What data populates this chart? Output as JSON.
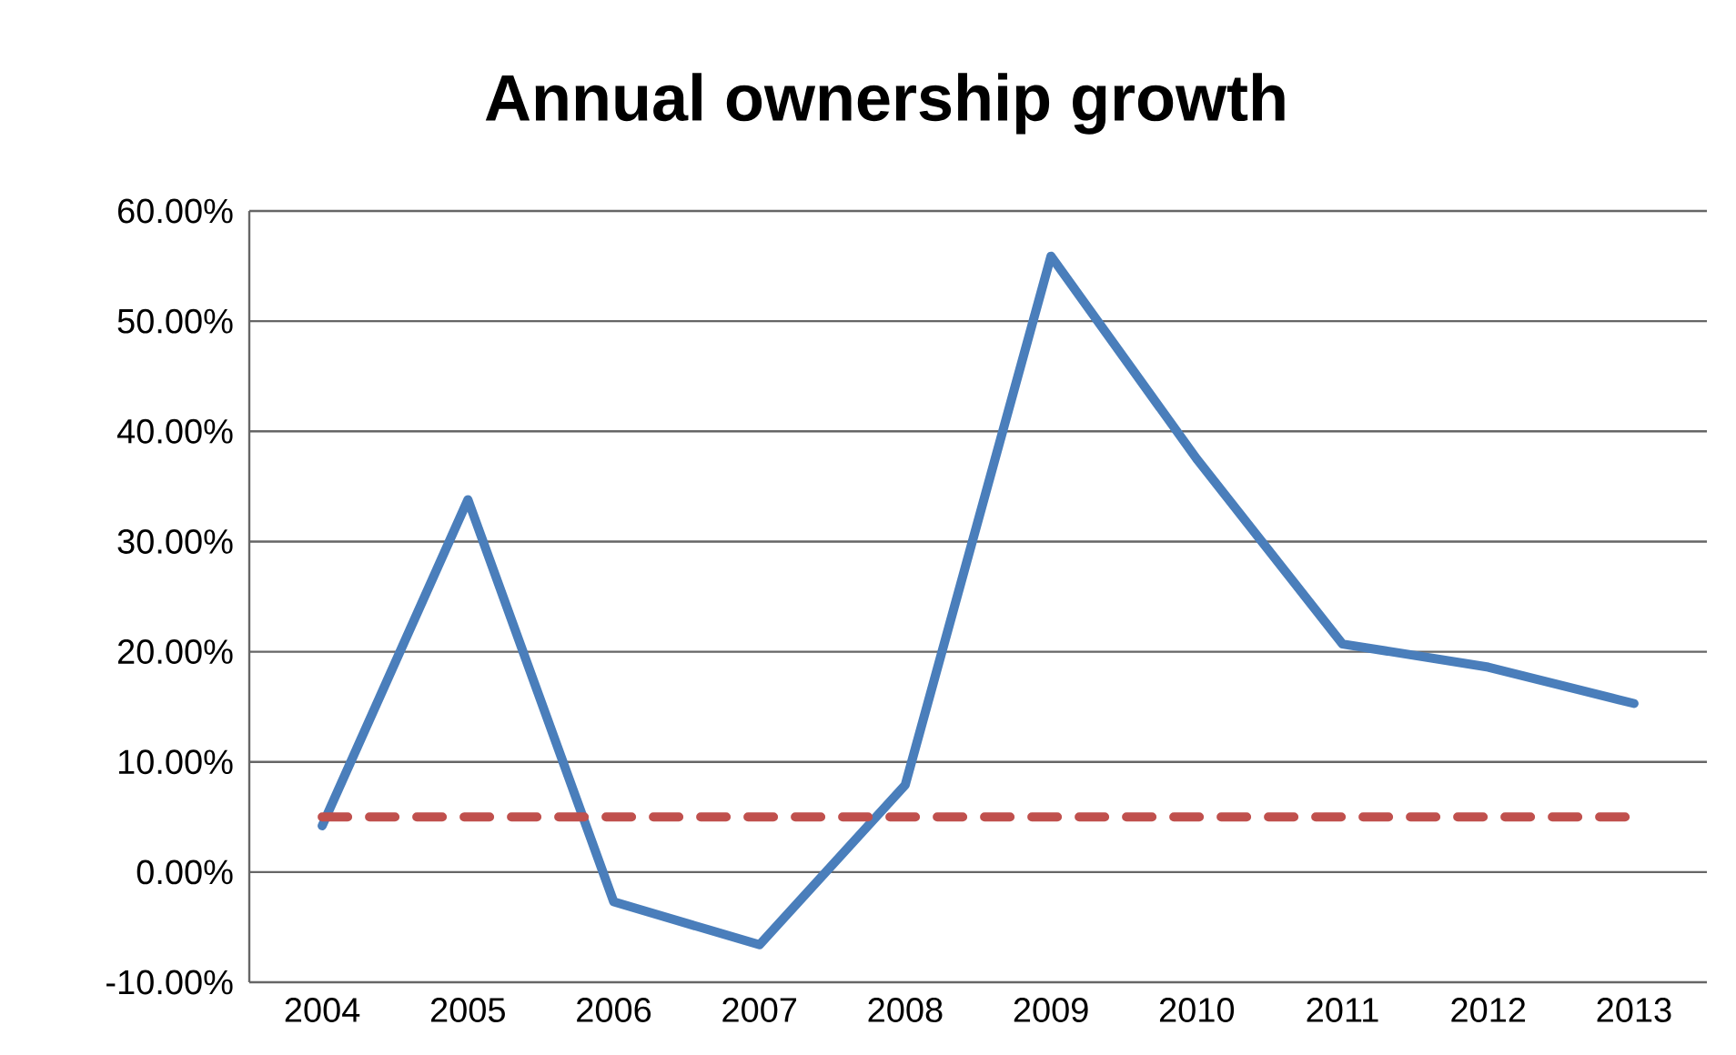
{
  "chart_data": {
    "type": "line",
    "title": "Annual ownership growth",
    "categories": [
      "2004",
      "2005",
      "2006",
      "2007",
      "2008",
      "2009",
      "2010",
      "2011",
      "2012",
      "2013"
    ],
    "series": [
      {
        "color": "#4a7ebb",
        "values": [
          4.2,
          33.8,
          -2.7,
          -6.6,
          7.9,
          55.9,
          37.5,
          20.7,
          18.6,
          15.3
        ]
      },
      {
        "color": "#c0504d",
        "line_style": "dashed",
        "values": [
          5,
          5,
          5,
          5,
          5,
          5,
          5,
          5,
          5,
          5
        ]
      }
    ],
    "ylim": [
      -10,
      60
    ],
    "yticks": [
      {
        "value": -10,
        "label": "-10.00%"
      },
      {
        "value": 0,
        "label": "0.00%"
      },
      {
        "value": 10,
        "label": "10.00%"
      },
      {
        "value": 20,
        "label": "20.00%"
      },
      {
        "value": 30,
        "label": "30.00%"
      },
      {
        "value": 40,
        "label": "40.00%"
      },
      {
        "value": 50,
        "label": "50.00%"
      },
      {
        "value": 60,
        "label": "60.00%"
      }
    ],
    "grid": "y",
    "marker": "none"
  }
}
